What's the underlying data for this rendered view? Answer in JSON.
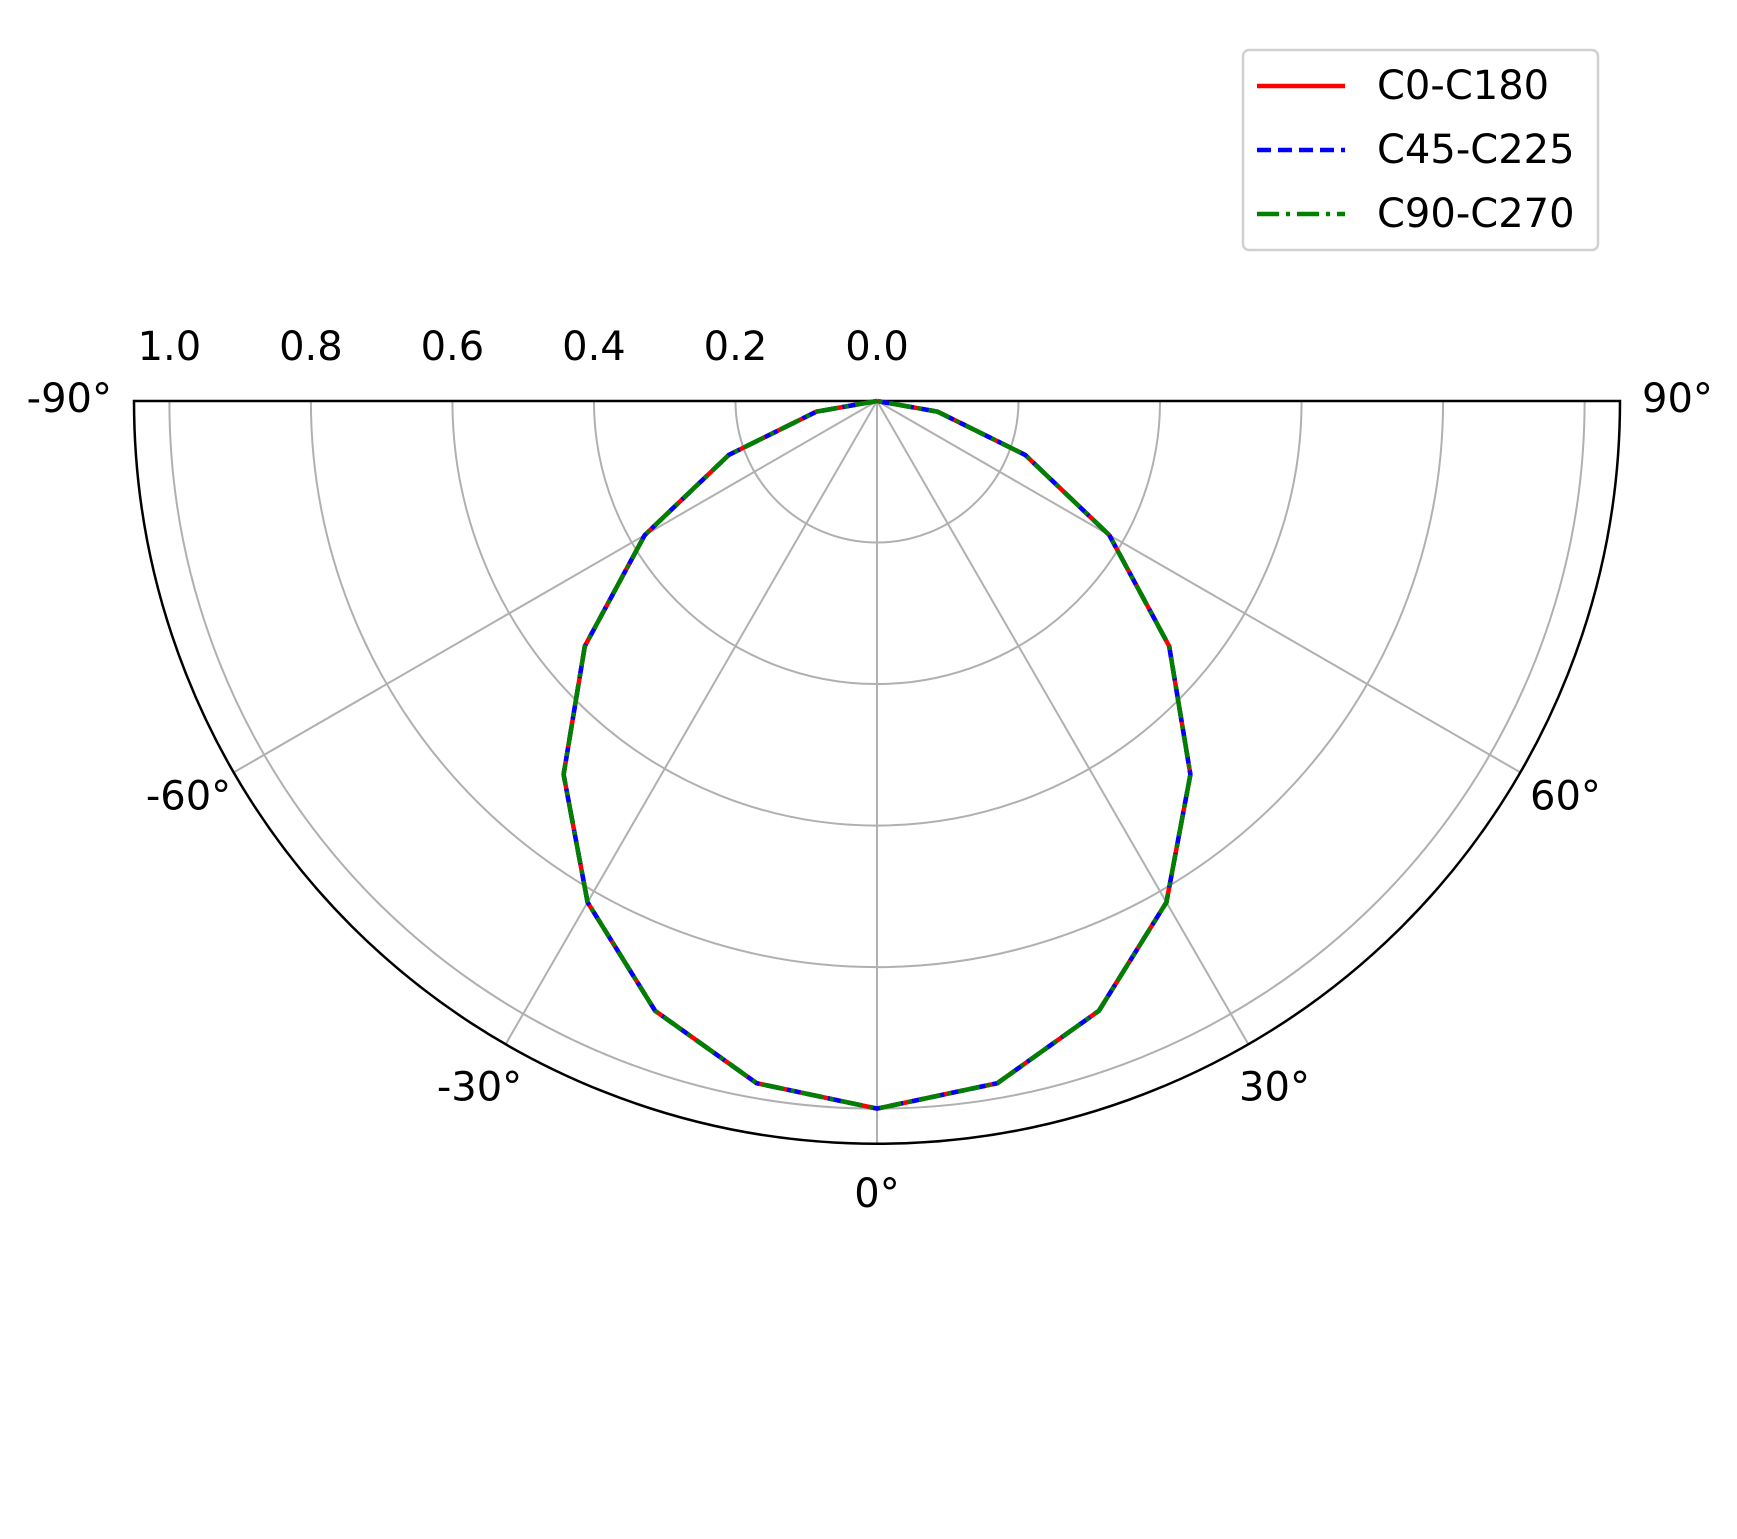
{
  "chart_data": {
    "type": "polar",
    "x": [
      -90,
      -80,
      -70,
      -60,
      -50,
      -40,
      -30,
      -20,
      -10,
      0,
      10,
      20,
      30,
      40,
      50,
      60,
      70,
      80,
      90
    ],
    "series": [
      {
        "name": "C0-C180",
        "color": "#ff0000",
        "linestyle": "solid",
        "values": [
          0,
          0.087,
          0.223,
          0.379,
          0.539,
          0.689,
          0.818,
          0.917,
          0.979,
          1,
          0.979,
          0.917,
          0.818,
          0.689,
          0.539,
          0.379,
          0.223,
          0.087,
          0
        ]
      },
      {
        "name": "C45-C225",
        "color": "#0000ff",
        "linestyle": "dashed",
        "values": [
          0,
          0.087,
          0.223,
          0.379,
          0.539,
          0.689,
          0.818,
          0.917,
          0.979,
          1,
          0.979,
          0.917,
          0.818,
          0.689,
          0.539,
          0.379,
          0.223,
          0.087,
          0
        ]
      },
      {
        "name": "C90-C270",
        "color": "#008000",
        "linestyle": "dashdot",
        "values": [
          0,
          0.087,
          0.223,
          0.379,
          0.539,
          0.689,
          0.818,
          0.917,
          0.979,
          1,
          0.979,
          0.917,
          0.818,
          0.689,
          0.539,
          0.379,
          0.223,
          0.087,
          0
        ]
      }
    ],
    "xlim": [
      -90,
      90
    ],
    "xticks": [
      {
        "value": -90,
        "label": "-90°"
      },
      {
        "value": -60,
        "label": "-60°"
      },
      {
        "value": -30,
        "label": "-30°"
      },
      {
        "value": 0,
        "label": "0°"
      },
      {
        "value": 30,
        "label": "30°"
      },
      {
        "value": 60,
        "label": "60°"
      },
      {
        "value": 90,
        "label": "90°"
      }
    ],
    "ylim": [
      0,
      1.05
    ],
    "yticks": [
      {
        "value": 0,
        "label": "0.0"
      },
      {
        "value": 0.2,
        "label": "0.2"
      },
      {
        "value": 0.4,
        "label": "0.4"
      },
      {
        "value": 0.6,
        "label": "0.6"
      },
      {
        "value": 0.8,
        "label": "0.8"
      },
      {
        "value": 1,
        "label": "1.0"
      }
    ],
    "grid": true,
    "legend": "upper right"
  }
}
